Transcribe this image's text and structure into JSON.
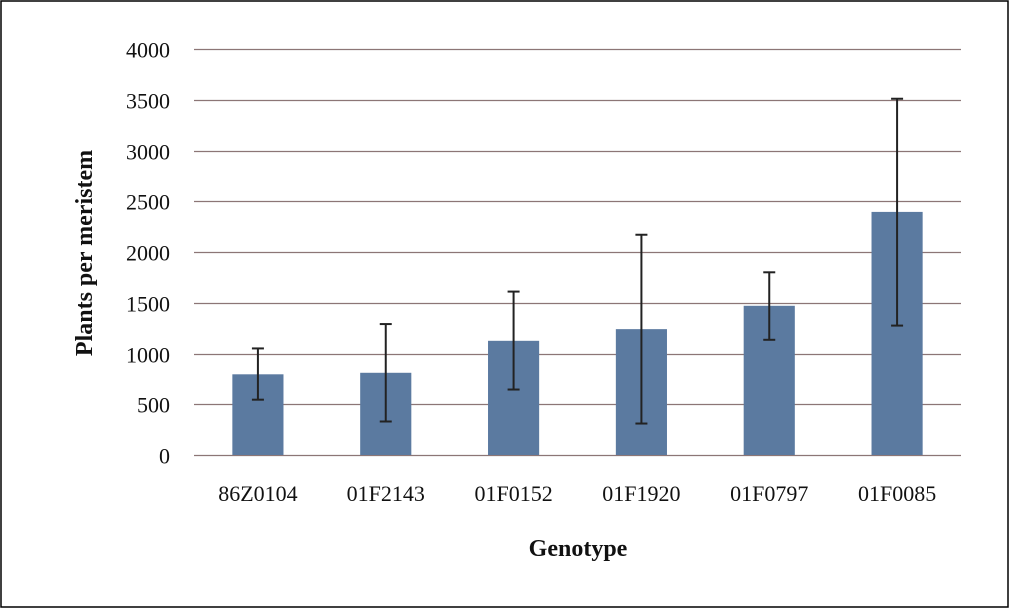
{
  "chart_data": {
    "type": "bar",
    "title": "",
    "xlabel": "Genotype",
    "ylabel": "Plants per meristem",
    "categories": [
      "86Z0104",
      "01F2143",
      "01F0152",
      "01F1920",
      "01F0797",
      "01F0085"
    ],
    "values": [
      795,
      810,
      1125,
      1240,
      1470,
      2395
    ],
    "error_low": [
      545,
      330,
      645,
      310,
      1135,
      1275
    ],
    "error_high": [
      1050,
      1290,
      1610,
      2170,
      1800,
      3510
    ],
    "ylim": [
      0,
      4000
    ],
    "yticks": [
      0,
      500,
      1000,
      1500,
      2000,
      2500,
      3000,
      3500,
      4000
    ],
    "ytick_labels": [
      "0",
      "500",
      "1000",
      "1500",
      "2000",
      "2500",
      "3000",
      "3500",
      "4000"
    ],
    "grid": true,
    "legend": "none",
    "colors": {
      "bar": "#5b7aa0",
      "gridline": "#8c7676",
      "error_bar": "#222222",
      "frame": "#000000"
    }
  }
}
